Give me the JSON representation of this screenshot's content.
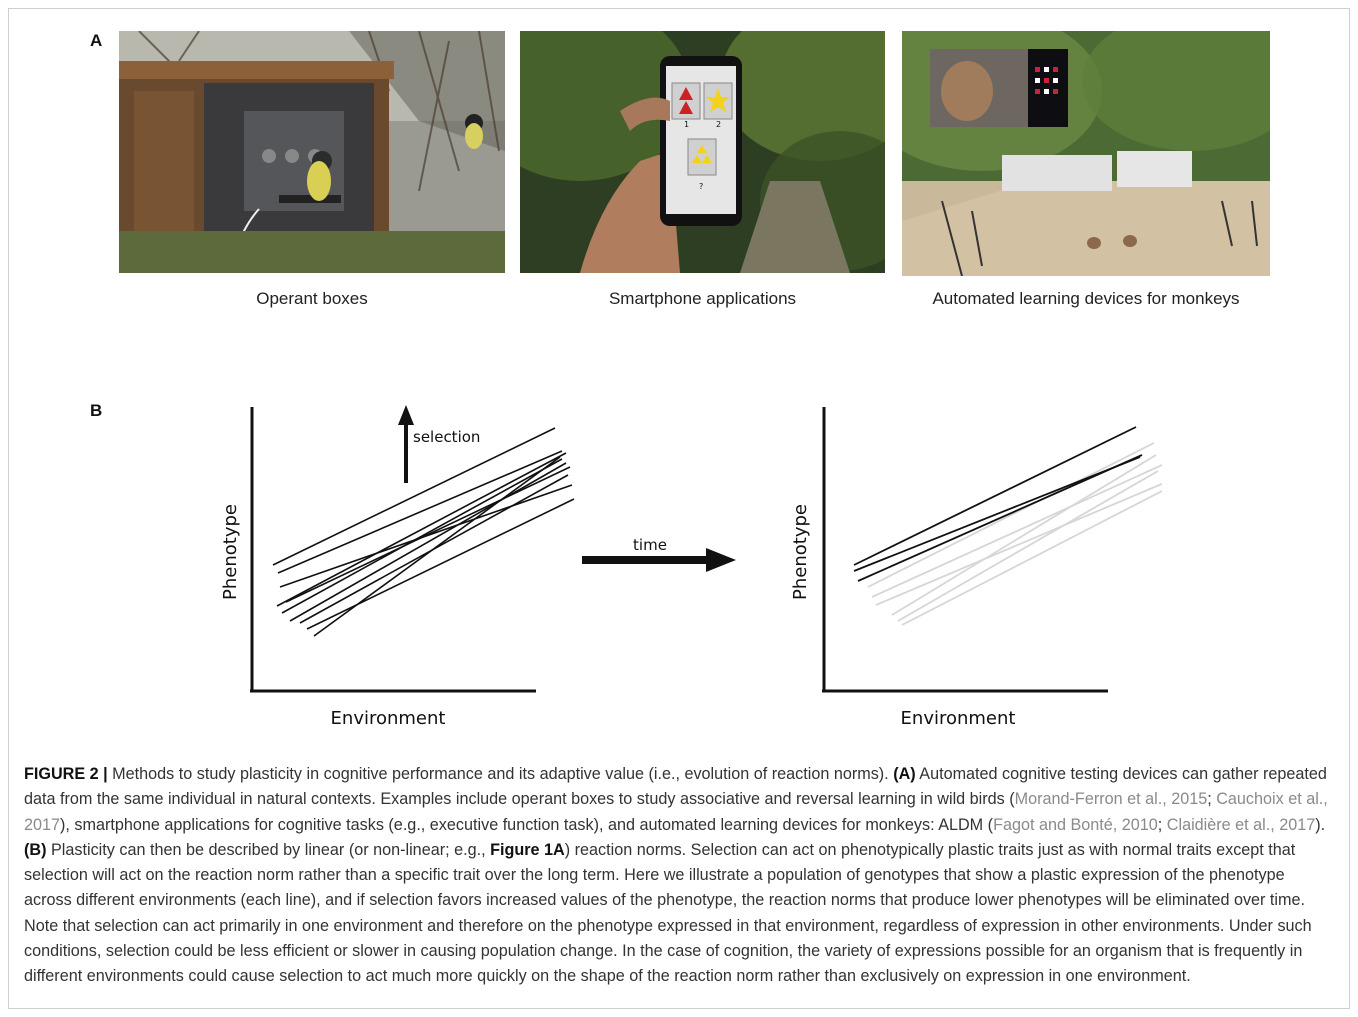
{
  "panels": {
    "a_label": "A",
    "b_label": "B"
  },
  "photos": [
    {
      "caption": "Operant boxes"
    },
    {
      "caption": "Smartphone applications",
      "phone_labels": [
        "1",
        "2",
        "?"
      ]
    },
    {
      "caption": "Automated learning devices for monkeys"
    }
  ],
  "plot_left": {
    "xlabel": "Environment",
    "ylabel": "Phenotype",
    "annotation": "selection"
  },
  "arrow_label": "time",
  "plot_right": {
    "xlabel": "Environment",
    "ylabel": "Phenotype"
  },
  "colors": {
    "line_black": "#111111",
    "line_faded": "#d6d6d6",
    "reference_gray": "#8a8a8a"
  },
  "caption": {
    "fig_label": "FIGURE 2 |",
    "s1": " Methods to study plasticity in cognitive performance and its adaptive value (i.e., evolution of reaction norms). ",
    "a_tag": "(A)",
    "s2": " Automated cognitive testing devices can gather repeated data from the same individual in natural contexts. Examples include operant boxes to study associative and reversal learning in wild birds (",
    "ref1": "Morand-Ferron et al., 2015",
    "sep1": "; ",
    "ref2": "Cauchoix et al., 2017",
    "s3": "), smartphone applications for cognitive tasks (e.g., executive function task), and automated learning devices for monkeys: ALDM (",
    "ref3": "Fagot and Bonté, 2010",
    "sep2": "; ",
    "ref4": "Claidière et al., 2017",
    "s4": "). ",
    "b_tag": "(B)",
    "s5": " Plasticity can then be described by linear (or non-linear; e.g., ",
    "fig1a": "Figure 1A",
    "s6": ") reaction norms. Selection can act on phenotypically plastic traits just as with normal traits except that selection will act on the reaction norm rather than a specific trait over the long term. Here we illustrate a population of genotypes that show a plastic expression of the phenotype across different environments (each line), and if selection favors increased values of the phenotype, the reaction norms that produce lower phenotypes will be eliminated over time. Note that selection can act primarily in one environment and therefore on the phenotype expressed in that environment, regardless of expression in other environments. Under such conditions, selection could be less efficient or slower in causing population change. In the case of cognition, the variety of expressions possible for an organism that is frequently in different environments could cause selection to act much more quickly on the shape of the reaction norm rather than exclusively on expression in one environment."
  }
}
